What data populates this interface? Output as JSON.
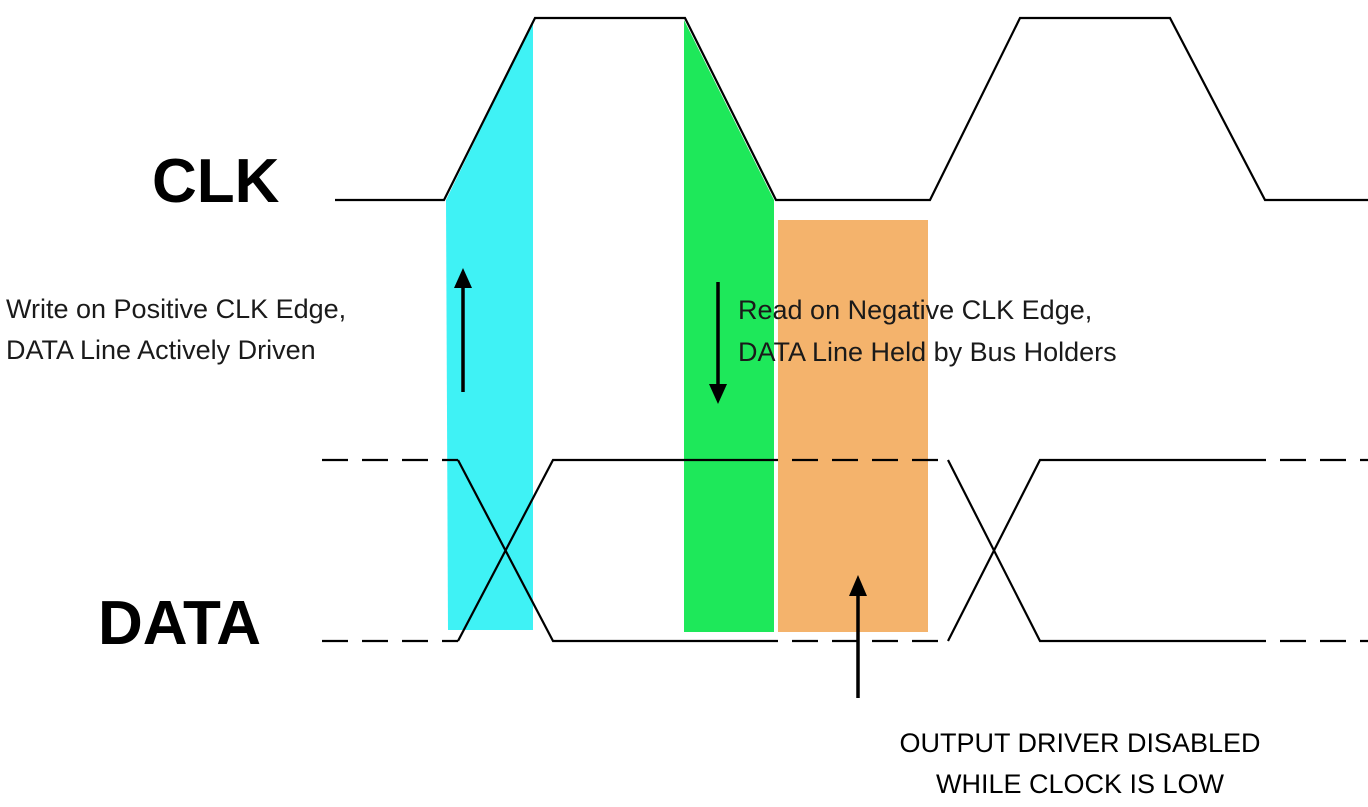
{
  "signals": {
    "clk_label": "CLK",
    "data_label": "DATA"
  },
  "annotations": {
    "write": {
      "line1": "Write on Positive CLK Edge,",
      "line2": "DATA Line Actively Driven"
    },
    "read": {
      "line1": "Read on Negative CLK Edge,",
      "line2": "DATA Line Held by Bus Holders"
    },
    "output_driver": {
      "line1": "OUTPUT DRIVER DISABLED",
      "line2": "WHILE CLOCK IS LOW"
    }
  },
  "colors": {
    "write_window": "#3ff2f5",
    "read_window": "#1ee85a",
    "disabled_window": "#f4b36c",
    "line": "#000000"
  }
}
